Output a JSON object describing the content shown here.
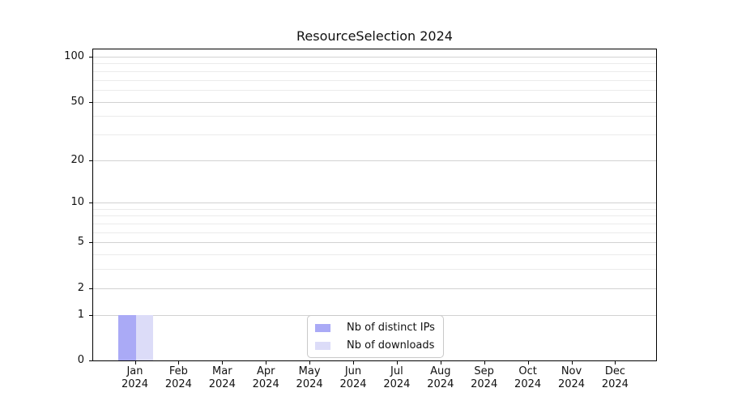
{
  "chart_data": {
    "type": "bar",
    "title": "ResourceSelection 2024",
    "x_month_labels": [
      "Jan",
      "Feb",
      "Mar",
      "Apr",
      "May",
      "Jun",
      "Jul",
      "Aug",
      "Sep",
      "Oct",
      "Nov",
      "Dec"
    ],
    "x_year_label": "2024",
    "series": [
      {
        "name": "Nb of distinct IPs",
        "color": "#aaaaf6",
        "values": [
          1,
          0,
          0,
          0,
          0,
          0,
          0,
          0,
          0,
          0,
          0,
          0
        ]
      },
      {
        "name": "Nb of downloads",
        "color": "#dcdcf8",
        "values": [
          1,
          0,
          0,
          0,
          0,
          0,
          0,
          0,
          0,
          0,
          0,
          0
        ]
      }
    ],
    "yscale": "log1p",
    "ylim": [
      0,
      113
    ],
    "y_major_ticks": [
      0,
      1,
      2,
      5,
      10,
      20,
      50,
      100
    ],
    "y_minor_ticks": [
      3,
      4,
      6,
      7,
      8,
      9,
      30,
      40,
      60,
      70,
      80,
      90
    ],
    "grid": "both",
    "legend_position": "lower center",
    "legend_entries": [
      "Nb of distinct IPs",
      "Nb of downloads"
    ]
  },
  "colors": {
    "grid_major": "#d2d2d2",
    "grid_minor": "#ebebeb",
    "spine": "#000000",
    "text": "#111111",
    "legend_border": "#c9c9c9"
  }
}
